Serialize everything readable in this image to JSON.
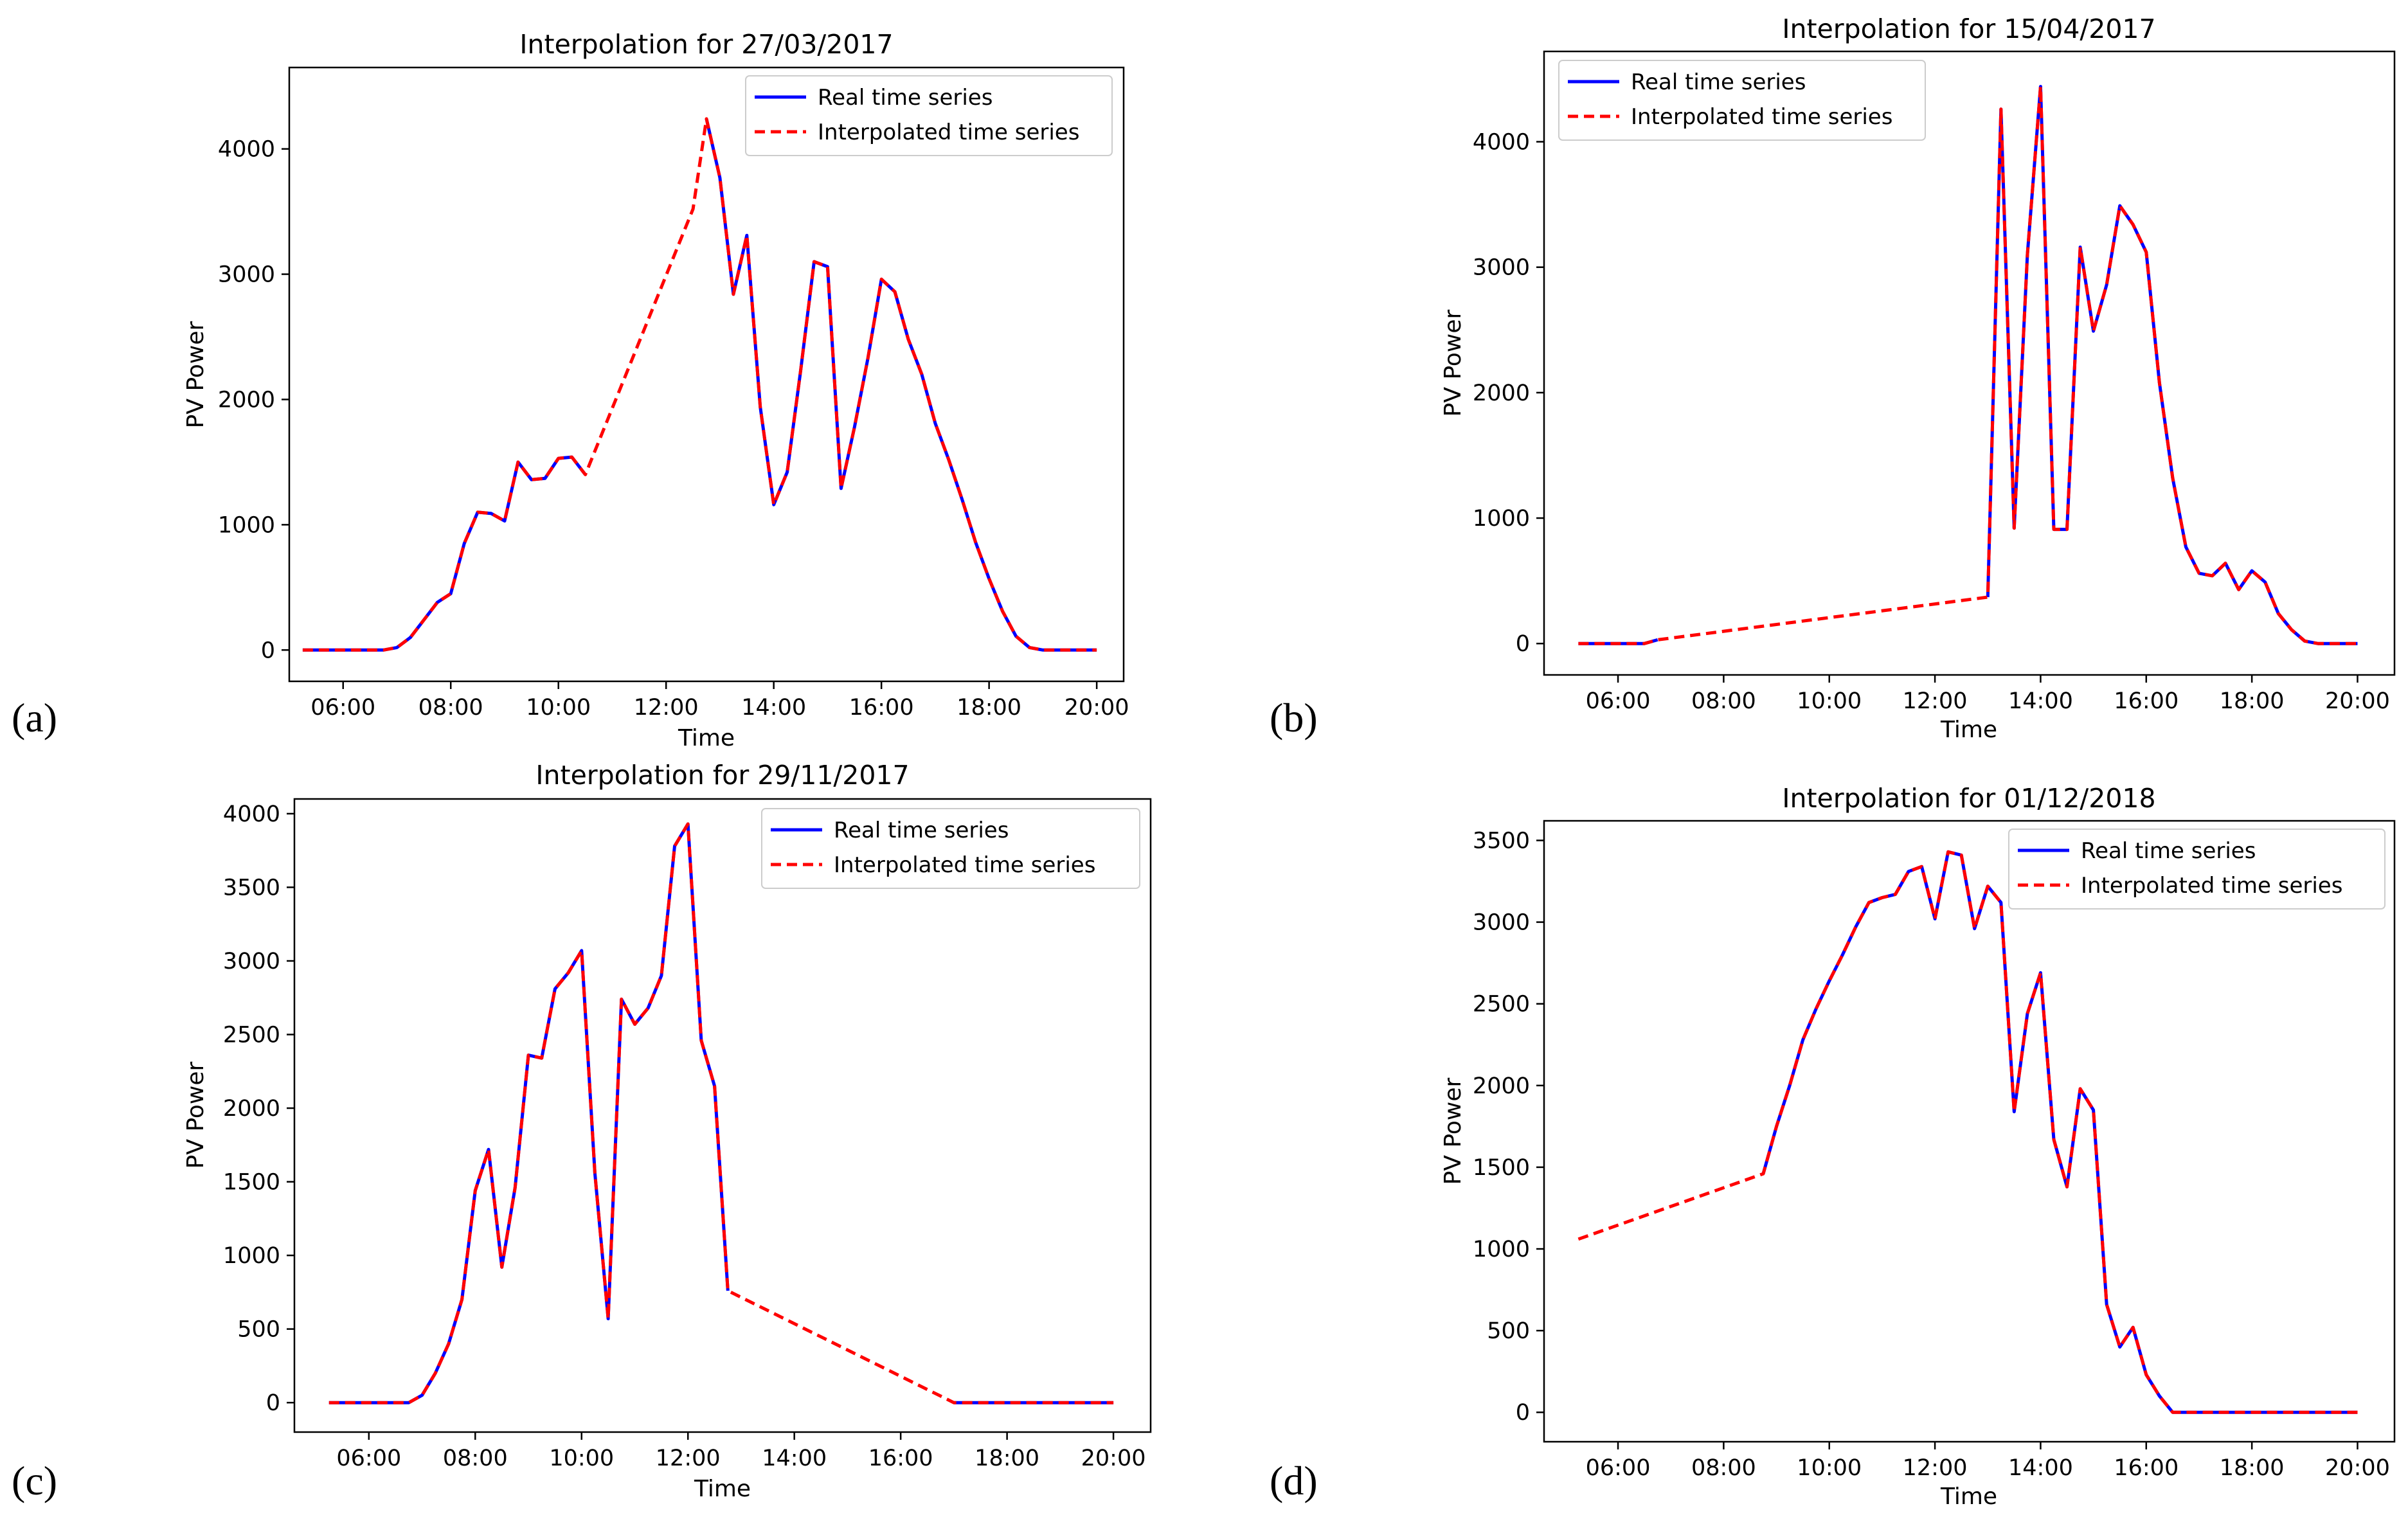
{
  "figure": {
    "panel_labels": [
      "(a)",
      "(b)",
      "(c)",
      "(d)"
    ]
  },
  "colors": {
    "real": "#0000ff",
    "interpolated": "#ff0000",
    "axis": "#000000"
  },
  "chart_data": [
    {
      "type": "line",
      "panel": "(a)",
      "title": "Interpolation for 27/03/2017",
      "xlabel": "Time",
      "ylabel": "PV Power",
      "xlim": [
        5.0,
        20.5
      ],
      "ylim": [
        -250,
        4650
      ],
      "xticks": [
        6,
        8,
        10,
        12,
        14,
        16,
        18,
        20
      ],
      "xtick_labels": [
        "06:00",
        "08:00",
        "10:00",
        "12:00",
        "14:00",
        "16:00",
        "18:00",
        "20:00"
      ],
      "yticks": [
        0,
        1000,
        2000,
        3000,
        4000
      ],
      "ytick_labels": [
        "0",
        "1000",
        "2000",
        "3000",
        "4000"
      ],
      "legend": [
        "Real time series",
        "Interpolated time series"
      ],
      "legend_position": "top-right",
      "series": [
        {
          "name": "Real time series",
          "x": [
            5.25,
            5.5,
            5.75,
            6.0,
            6.25,
            6.5,
            6.75,
            7.0,
            7.25,
            7.5,
            7.75,
            8.0,
            8.25,
            8.5,
            8.75,
            9.0,
            9.25,
            9.5,
            9.75,
            10.0,
            10.25,
            10.5,
            null,
            12.75,
            13.0,
            13.25,
            13.5,
            13.75,
            14.0,
            14.25,
            14.5,
            14.75,
            15.0,
            15.25,
            15.5,
            15.75,
            16.0,
            16.25,
            16.5,
            16.75,
            17.0,
            17.25,
            17.5,
            17.75,
            18.0,
            18.25,
            18.5,
            18.75,
            19.0,
            19.25,
            19.5,
            19.75,
            20.0
          ],
          "y": [
            0,
            0,
            0,
            0,
            0,
            0,
            0,
            20,
            100,
            240,
            380,
            450,
            850,
            1100,
            1090,
            1030,
            1500,
            1360,
            1370,
            1530,
            1540,
            1400,
            null,
            4240,
            3770,
            2840,
            3310,
            1940,
            1160,
            1420,
            2230,
            3100,
            3060,
            1290,
            1780,
            2330,
            2960,
            2860,
            2480,
            2200,
            1810,
            1520,
            1200,
            860,
            570,
            310,
            110,
            20,
            0,
            0,
            0,
            0,
            0
          ]
        },
        {
          "name": "Interpolated time series",
          "x": [
            5.25,
            5.5,
            5.75,
            6.0,
            6.25,
            6.5,
            6.75,
            7.0,
            7.25,
            7.5,
            7.75,
            8.0,
            8.25,
            8.5,
            8.75,
            9.0,
            9.25,
            9.5,
            9.75,
            10.0,
            10.25,
            10.5,
            12.5,
            12.75,
            13.0,
            13.25,
            13.5,
            13.75,
            14.0,
            14.25,
            14.5,
            14.75,
            15.0,
            15.25,
            15.5,
            15.75,
            16.0,
            16.25,
            16.5,
            16.75,
            17.0,
            17.25,
            17.5,
            17.75,
            18.0,
            18.25,
            18.5,
            18.75,
            19.0,
            19.25,
            19.5,
            19.75,
            20.0
          ],
          "y": [
            0,
            0,
            0,
            0,
            0,
            0,
            0,
            20,
            100,
            240,
            380,
            450,
            850,
            1100,
            1090,
            1030,
            1500,
            1360,
            1370,
            1530,
            1540,
            1400,
            3520,
            4240,
            3770,
            2840,
            3310,
            1940,
            1160,
            1420,
            2230,
            3100,
            3060,
            1290,
            1780,
            2330,
            2960,
            2860,
            2480,
            2200,
            1810,
            1520,
            1200,
            860,
            570,
            310,
            110,
            20,
            0,
            0,
            0,
            0,
            0
          ]
        }
      ]
    },
    {
      "type": "line",
      "panel": "(b)",
      "title": "Interpolation for 15/04/2017",
      "xlabel": "Time",
      "ylabel": "PV Power",
      "xlim": [
        4.6,
        20.7
      ],
      "ylim": [
        -250,
        4720
      ],
      "xticks": [
        6,
        8,
        10,
        12,
        14,
        16,
        18,
        20
      ],
      "xtick_labels": [
        "06:00",
        "08:00",
        "10:00",
        "12:00",
        "14:00",
        "16:00",
        "18:00",
        "20:00"
      ],
      "yticks": [
        0,
        1000,
        2000,
        3000,
        4000
      ],
      "ytick_labels": [
        "0",
        "1000",
        "2000",
        "3000",
        "4000"
      ],
      "legend": [
        "Real time series",
        "Interpolated time series"
      ],
      "legend_position": "top-left",
      "series": [
        {
          "name": "Real time series",
          "x": [
            5.25,
            5.5,
            5.75,
            6.0,
            6.25,
            6.5,
            6.75,
            null,
            13.0,
            13.25,
            13.5,
            13.75,
            14.0,
            14.25,
            14.5,
            14.75,
            15.0,
            15.25,
            15.5,
            15.75,
            16.0,
            16.25,
            16.5,
            16.75,
            17.0,
            17.25,
            17.5,
            17.75,
            18.0,
            18.25,
            18.5,
            18.75,
            19.0,
            19.25,
            19.5,
            19.75,
            20.0
          ],
          "y": [
            0,
            0,
            0,
            0,
            0,
            0,
            30,
            null,
            370,
            4260,
            920,
            3100,
            4440,
            910,
            910,
            3160,
            2490,
            2860,
            3490,
            3340,
            3120,
            2080,
            1320,
            770,
            560,
            540,
            640,
            430,
            580,
            490,
            240,
            110,
            20,
            0,
            0,
            0,
            0
          ]
        },
        {
          "name": "Interpolated time series",
          "x": [
            5.25,
            5.5,
            5.75,
            6.0,
            6.25,
            6.5,
            6.75,
            13.0,
            13.25,
            13.5,
            13.75,
            14.0,
            14.25,
            14.5,
            14.75,
            15.0,
            15.25,
            15.5,
            15.75,
            16.0,
            16.25,
            16.5,
            16.75,
            17.0,
            17.25,
            17.5,
            17.75,
            18.0,
            18.25,
            18.5,
            18.75,
            19.0,
            19.25,
            19.5,
            19.75,
            20.0
          ],
          "y": [
            0,
            0,
            0,
            0,
            0,
            0,
            30,
            370,
            4260,
            920,
            3100,
            4440,
            910,
            910,
            3160,
            2490,
            2860,
            3490,
            3340,
            3120,
            2080,
            1320,
            770,
            560,
            540,
            640,
            430,
            580,
            490,
            240,
            110,
            20,
            0,
            0,
            0,
            0
          ]
        }
      ]
    },
    {
      "type": "line",
      "panel": "(c)",
      "title": "Interpolation for 29/11/2017",
      "xlabel": "Time",
      "ylabel": "PV Power",
      "xlim": [
        4.6,
        20.7
      ],
      "ylim": [
        -200,
        4100
      ],
      "xticks": [
        6,
        8,
        10,
        12,
        14,
        16,
        18,
        20
      ],
      "xtick_labels": [
        "06:00",
        "08:00",
        "10:00",
        "12:00",
        "14:00",
        "16:00",
        "18:00",
        "20:00"
      ],
      "yticks": [
        0,
        500,
        1000,
        1500,
        2000,
        2500,
        3000,
        3500,
        4000
      ],
      "ytick_labels": [
        "0",
        "500",
        "1000",
        "1500",
        "2000",
        "2500",
        "3000",
        "3500",
        "4000"
      ],
      "legend": [
        "Real time series",
        "Interpolated time series"
      ],
      "legend_position": "top-right",
      "series": [
        {
          "name": "Real time series",
          "x": [
            5.25,
            5.5,
            5.75,
            6.0,
            6.25,
            6.5,
            6.75,
            7.0,
            7.25,
            7.5,
            7.75,
            8.0,
            8.25,
            8.5,
            8.75,
            9.0,
            9.25,
            9.5,
            9.75,
            10.0,
            10.25,
            10.5,
            10.75,
            11.0,
            11.25,
            11.5,
            11.75,
            12.0,
            12.25,
            12.5,
            12.75,
            null,
            17.0,
            17.25,
            17.5,
            17.75,
            18.0,
            18.25,
            18.5,
            18.75,
            19.0,
            19.25,
            19.5,
            19.75,
            20.0
          ],
          "y": [
            0,
            0,
            0,
            0,
            0,
            0,
            0,
            50,
            200,
            400,
            700,
            1440,
            1720,
            920,
            1460,
            2360,
            2340,
            2810,
            2920,
            3070,
            1560,
            570,
            2740,
            2570,
            2680,
            2900,
            3780,
            3930,
            2460,
            2150,
            760,
            null,
            0,
            0,
            0,
            0,
            0,
            0,
            0,
            0,
            0,
            0,
            0,
            0,
            0
          ]
        },
        {
          "name": "Interpolated time series",
          "x": [
            5.25,
            5.5,
            5.75,
            6.0,
            6.25,
            6.5,
            6.75,
            7.0,
            7.25,
            7.5,
            7.75,
            8.0,
            8.25,
            8.5,
            8.75,
            9.0,
            9.25,
            9.5,
            9.75,
            10.0,
            10.25,
            10.5,
            10.75,
            11.0,
            11.25,
            11.5,
            11.75,
            12.0,
            12.25,
            12.5,
            12.75,
            17.0,
            17.25,
            17.5,
            17.75,
            18.0,
            18.25,
            18.5,
            18.75,
            19.0,
            19.25,
            19.5,
            19.75,
            20.0
          ],
          "y": [
            0,
            0,
            0,
            0,
            0,
            0,
            0,
            50,
            200,
            400,
            700,
            1440,
            1720,
            920,
            1460,
            2360,
            2340,
            2810,
            2920,
            3070,
            1560,
            570,
            2740,
            2570,
            2680,
            2900,
            3780,
            3930,
            2460,
            2150,
            760,
            0,
            0,
            0,
            0,
            0,
            0,
            0,
            0,
            0,
            0,
            0,
            0,
            0
          ]
        }
      ]
    },
    {
      "type": "line",
      "panel": "(d)",
      "title": "Interpolation for 01/12/2018",
      "xlabel": "Time",
      "ylabel": "PV Power",
      "xlim": [
        4.6,
        20.7
      ],
      "ylim": [
        -180,
        3620
      ],
      "xticks": [
        6,
        8,
        10,
        12,
        14,
        16,
        18,
        20
      ],
      "xtick_labels": [
        "06:00",
        "08:00",
        "10:00",
        "12:00",
        "14:00",
        "16:00",
        "18:00",
        "20:00"
      ],
      "yticks": [
        0,
        500,
        1000,
        1500,
        2000,
        2500,
        3000,
        3500
      ],
      "ytick_labels": [
        "0",
        "500",
        "1000",
        "1500",
        "2000",
        "2500",
        "3000",
        "3500"
      ],
      "legend": [
        "Real time series",
        "Interpolated time series"
      ],
      "legend_position": "top-right",
      "series": [
        {
          "name": "Real time series",
          "x": [
            null,
            8.75,
            9.0,
            9.25,
            9.5,
            9.75,
            10.0,
            10.25,
            10.5,
            10.75,
            11.0,
            11.25,
            11.5,
            11.75,
            12.0,
            12.25,
            12.5,
            12.75,
            13.0,
            13.25,
            13.5,
            13.75,
            14.0,
            14.25,
            14.5,
            14.75,
            15.0,
            15.25,
            15.5,
            15.75,
            16.0,
            16.25,
            16.5,
            16.75,
            17.0,
            17.25,
            17.5,
            17.75,
            18.0,
            18.25,
            18.5,
            18.75,
            19.0,
            19.25,
            19.5,
            19.75,
            20.0
          ],
          "y": [
            null,
            1460,
            1750,
            2000,
            2280,
            2470,
            2640,
            2800,
            2970,
            3120,
            3150,
            3170,
            3310,
            3340,
            3020,
            3430,
            3410,
            2960,
            3220,
            3120,
            1840,
            2440,
            2690,
            1670,
            1380,
            1980,
            1850,
            660,
            400,
            520,
            230,
            100,
            0,
            0,
            0,
            0,
            0,
            0,
            0,
            0,
            0,
            0,
            0,
            0,
            0,
            0,
            0
          ]
        },
        {
          "name": "Interpolated time series",
          "x": [
            5.25,
            8.75,
            9.0,
            9.25,
            9.5,
            9.75,
            10.0,
            10.25,
            10.5,
            10.75,
            11.0,
            11.25,
            11.5,
            11.75,
            12.0,
            12.25,
            12.5,
            12.75,
            13.0,
            13.25,
            13.5,
            13.75,
            14.0,
            14.25,
            14.5,
            14.75,
            15.0,
            15.25,
            15.5,
            15.75,
            16.0,
            16.25,
            16.5,
            16.75,
            17.0,
            17.25,
            17.5,
            17.75,
            18.0,
            18.25,
            18.5,
            18.75,
            19.0,
            19.25,
            19.5,
            19.75,
            20.0
          ],
          "y": [
            1060,
            1460,
            1750,
            2000,
            2280,
            2470,
            2640,
            2800,
            2970,
            3120,
            3150,
            3170,
            3310,
            3340,
            3020,
            3430,
            3410,
            2960,
            3220,
            3120,
            1840,
            2440,
            2690,
            1670,
            1380,
            1980,
            1850,
            660,
            400,
            520,
            230,
            100,
            0,
            0,
            0,
            0,
            0,
            0,
            0,
            0,
            0,
            0,
            0,
            0,
            0,
            0,
            0
          ]
        }
      ]
    }
  ]
}
